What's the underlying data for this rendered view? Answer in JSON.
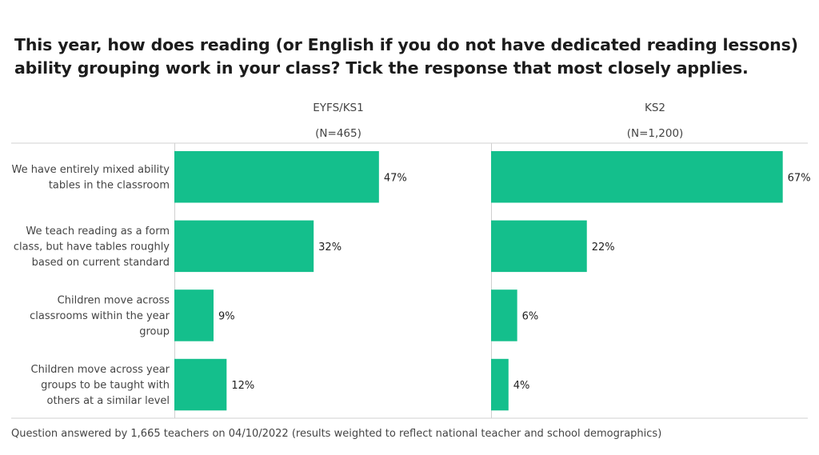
{
  "title": "This year, how does reading (or English if you do not have dedicated reading lessons) ability grouping work in your class? Tick the response that most closely applies.",
  "footnote": "Question answered by 1,665 teachers on 04/10/2022 (results weighted to reflect national teacher and school demographics)",
  "colors": {
    "bar": "#14bf8c",
    "gridline": "#d0d0d0"
  },
  "chart_data": {
    "type": "bar",
    "orientation": "horizontal",
    "unit": "%",
    "grid": false,
    "legend": "none",
    "categories": [
      [
        "We have entirely mixed ability",
        "tables in the classroom"
      ],
      [
        "We teach reading as a form",
        "class, but have tables roughly",
        "based on current standard"
      ],
      [
        "Children move across",
        "classrooms within the year",
        "group"
      ],
      [
        "Children move across year",
        "groups to be taught with",
        "others at a similar level"
      ]
    ],
    "panels": [
      {
        "title": "EYFS/KS1",
        "subtitle": "(N=465)",
        "values": [
          47,
          32,
          9,
          12
        ],
        "labels": [
          "47%",
          "32%",
          "9%",
          "12%"
        ],
        "xlim": [
          0,
          70
        ]
      },
      {
        "title": "KS2",
        "subtitle": "(N=1,200)",
        "values": [
          67,
          22,
          6,
          4
        ],
        "labels": [
          "67%",
          "22%",
          "6%",
          "4%"
        ],
        "xlim": [
          0,
          70
        ]
      }
    ]
  }
}
